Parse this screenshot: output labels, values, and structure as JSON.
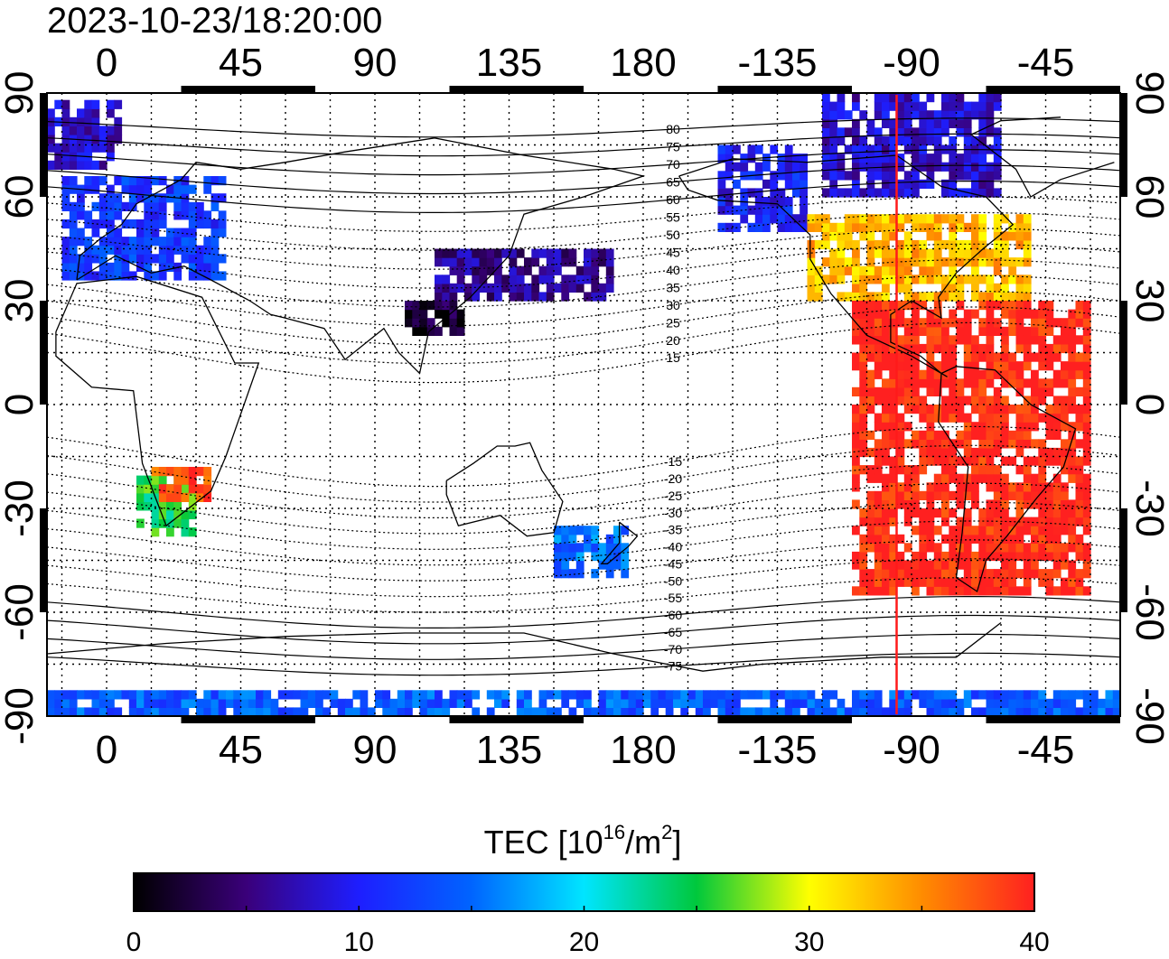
{
  "title": "2023-10-23/18:20:00",
  "map": {
    "projection": "equirectangular",
    "lon_range": [
      -20,
      340
    ],
    "lat_range": [
      -90,
      90
    ],
    "top_lon_ticks": [
      "0",
      "45",
      "90",
      "135",
      "180",
      "-135",
      "-90",
      "-45"
    ],
    "bottom_lon_ticks": [
      "0",
      "45",
      "90",
      "135",
      "180",
      "-135",
      "-90",
      "-45"
    ],
    "lon_tick_values": [
      0,
      45,
      90,
      135,
      180,
      225,
      270,
      315
    ],
    "left_lat_ticks": [
      "90",
      "60",
      "30",
      "0",
      "-30",
      "-60",
      "-90"
    ],
    "right_lat_ticks": [
      "90",
      "60",
      "30",
      "0",
      "-30",
      "-60",
      "-90"
    ],
    "lat_tick_values": [
      90,
      60,
      30,
      0,
      -30,
      -60,
      -90
    ],
    "grid": true,
    "terminator_lon": -95,
    "terminator_color": "#ff1a1a",
    "magnetic_lat_labels": [
      "80",
      "75",
      "70",
      "65",
      "60",
      "55",
      "50",
      "45",
      "40",
      "35",
      "30",
      "25",
      "20",
      "15",
      "-15",
      "-20",
      "-25",
      "-30",
      "-35",
      "-40",
      "-45",
      "-50",
      "-55",
      "-60",
      "-65",
      "-70",
      "-75"
    ],
    "magnetic_lat_values": [
      80,
      75,
      70,
      65,
      60,
      55,
      50,
      45,
      40,
      35,
      30,
      25,
      20,
      15,
      -15,
      -20,
      -25,
      -30,
      -35,
      -40,
      -45,
      -50,
      -55,
      -60,
      -65,
      -70,
      -75
    ]
  },
  "colorbar": {
    "label_main": "TEC  [10",
    "label_sup1": "16",
    "label_mid": "/m",
    "label_sup2": "2",
    "label_end": "]",
    "min": 0,
    "max": 40,
    "tick_labels": [
      "0",
      "10",
      "20",
      "30",
      "40"
    ],
    "colors": [
      "#000000",
      "#3a007a",
      "#1e1eff",
      "#0064ff",
      "#00e5ff",
      "#00c83c",
      "#ffff00",
      "#ff8c00",
      "#ff2020"
    ]
  },
  "chart_data": {
    "type": "heatmap",
    "title": "2023-10-23/18:20:00",
    "value_label": "TEC  [10^16/m^2]",
    "value_range": [
      0,
      40
    ],
    "regions": [
      {
        "lon": [
          -20,
          5
        ],
        "lat": [
          68,
          88
        ],
        "tec": 8
      },
      {
        "lon": [
          -15,
          40
        ],
        "lat": [
          36,
          65
        ],
        "tec": 12
      },
      {
        "lon": [
          10,
          28
        ],
        "lat": [
          -38,
          -22
        ],
        "tec": 25
      },
      {
        "lon": [
          15,
          35
        ],
        "lat": [
          -28,
          -20
        ],
        "tec": 38
      },
      {
        "lon": [
          110,
          170
        ],
        "lat": [
          30,
          45
        ],
        "tec": 6
      },
      {
        "lon": [
          100,
          120
        ],
        "lat": [
          20,
          30
        ],
        "tec": 2
      },
      {
        "lon": [
          205,
          235
        ],
        "lat": [
          50,
          75
        ],
        "tec": 10
      },
      {
        "lon": [
          235,
          310
        ],
        "lat": [
          30,
          55
        ],
        "tec": 33
      },
      {
        "lon": [
          240,
          300
        ],
        "lat": [
          60,
          88
        ],
        "tec": 8
      },
      {
        "lon": [
          250,
          330
        ],
        "lat": [
          -55,
          30
        ],
        "tec": 40
      },
      {
        "lon": [
          150,
          175
        ],
        "lat": [
          -50,
          -35
        ],
        "tec": 15
      },
      {
        "lon": [
          -20,
          340
        ],
        "lat": [
          -90,
          -83
        ],
        "tec": 14
      }
    ]
  }
}
